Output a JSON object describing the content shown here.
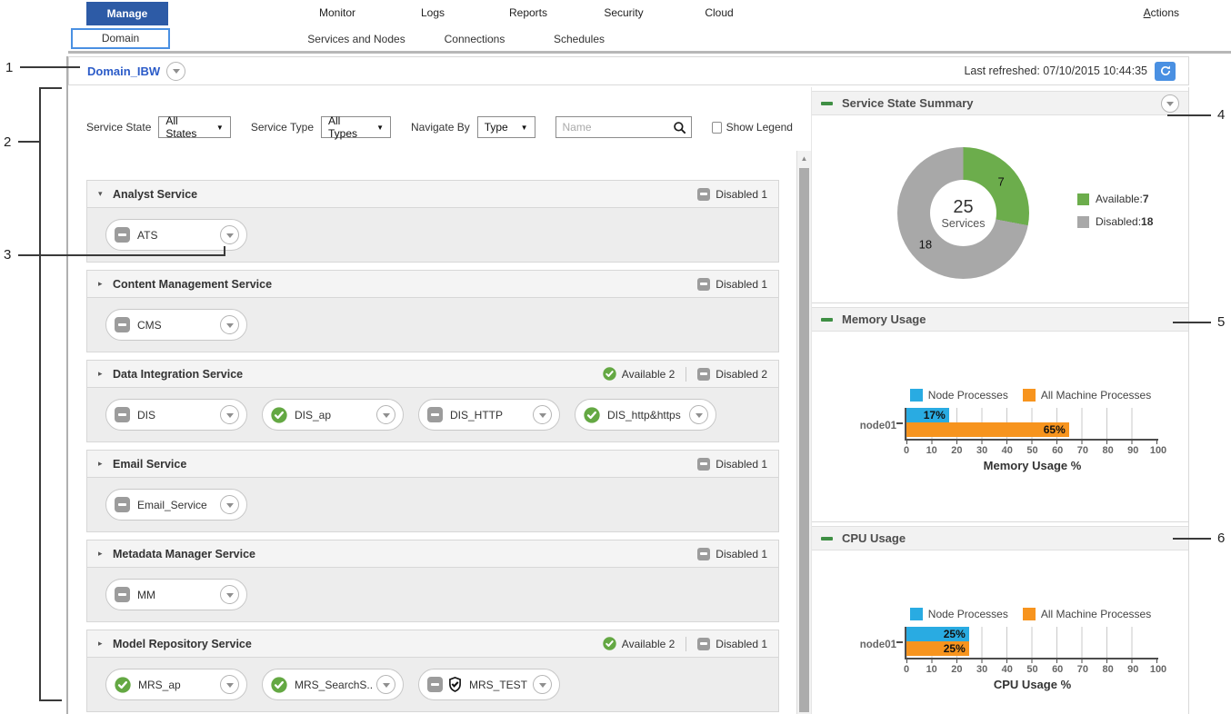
{
  "nav": {
    "tabs": [
      {
        "label": "Manage",
        "active": true
      },
      {
        "label": "Monitor",
        "active": false
      },
      {
        "label": "Logs",
        "active": false
      },
      {
        "label": "Reports",
        "active": false
      },
      {
        "label": "Security",
        "active": false
      },
      {
        "label": "Cloud",
        "active": false
      }
    ],
    "subtabs": [
      {
        "label": "Domain",
        "active": true
      },
      {
        "label": "Services and Nodes",
        "active": false
      },
      {
        "label": "Connections",
        "active": false
      },
      {
        "label": "Schedules",
        "active": false
      }
    ],
    "actions_label": "Actions"
  },
  "domain_header": {
    "domain_name": "Domain_IBW",
    "last_refreshed": "Last refreshed: 07/10/2015 10:44:35"
  },
  "filters": {
    "service_state_label": "Service State",
    "service_state_value": "All States",
    "service_type_label": "Service Type",
    "service_type_value": "All Types",
    "navigate_by_label": "Navigate By",
    "navigate_by_value": "Type",
    "name_placeholder": "Name",
    "show_legend_label": "Show Legend",
    "show_legend_checked": false
  },
  "services": {
    "groups": [
      {
        "name": "Analyst Service",
        "expanded": true,
        "badges": [
          {
            "state": "disabled",
            "label": "Disabled 1"
          }
        ],
        "items": [
          {
            "label": "ATS",
            "state": "disabled"
          }
        ]
      },
      {
        "name": "Content Management Service",
        "expanded": false,
        "badges": [
          {
            "state": "disabled",
            "label": "Disabled 1"
          }
        ],
        "items": [
          {
            "label": "CMS",
            "state": "disabled"
          }
        ]
      },
      {
        "name": "Data Integration Service",
        "expanded": false,
        "badges": [
          {
            "state": "available",
            "label": "Available 2"
          },
          {
            "state": "disabled",
            "label": "Disabled 2"
          }
        ],
        "items": [
          {
            "label": "DIS",
            "state": "disabled"
          },
          {
            "label": "DIS_ap",
            "state": "available"
          },
          {
            "label": "DIS_HTTP",
            "state": "disabled"
          },
          {
            "label": "DIS_http&https",
            "state": "available"
          }
        ]
      },
      {
        "name": "Email Service",
        "expanded": false,
        "badges": [
          {
            "state": "disabled",
            "label": "Disabled 1"
          }
        ],
        "items": [
          {
            "label": "Email_Service",
            "state": "disabled"
          }
        ]
      },
      {
        "name": "Metadata Manager Service",
        "expanded": false,
        "badges": [
          {
            "state": "disabled",
            "label": "Disabled 1"
          }
        ],
        "items": [
          {
            "label": "MM",
            "state": "disabled"
          }
        ]
      },
      {
        "name": "Model Repository Service",
        "expanded": false,
        "badges": [
          {
            "state": "available",
            "label": "Available 2"
          },
          {
            "state": "disabled",
            "label": "Disabled 1"
          }
        ],
        "items": [
          {
            "label": "MRS_ap",
            "state": "available"
          },
          {
            "label": "MRS_SearchS...",
            "state": "available"
          },
          {
            "label": "MRS_TEST",
            "state": "disabled",
            "shield": true
          }
        ]
      }
    ]
  },
  "chart_data": [
    {
      "id": "service_state_summary",
      "type": "pie",
      "donut": true,
      "title": "Service State Summary",
      "center_value": "25",
      "center_label": "Services",
      "slices": [
        {
          "label": "Available",
          "value": 7,
          "color": "#6cad4c"
        },
        {
          "label": "Disabled",
          "value": 18,
          "color": "#a8a8a8"
        }
      ],
      "legend_position": "right"
    },
    {
      "id": "memory_usage",
      "type": "bar",
      "orientation": "horizontal",
      "title": "Memory Usage",
      "categories": [
        "node01"
      ],
      "series": [
        {
          "name": "Node Processes",
          "color": "#29abe2",
          "values": [
            17
          ]
        },
        {
          "name": "All Machine Processes",
          "color": "#f7941e",
          "values": [
            65
          ]
        }
      ],
      "value_labels": [
        "17%",
        "65%"
      ],
      "xlabel": "Memory Usage %",
      "xlim": [
        0,
        100
      ],
      "xticks": [
        0,
        10,
        20,
        30,
        40,
        50,
        60,
        70,
        80,
        90,
        100
      ],
      "grid": true,
      "legend_position": "top"
    },
    {
      "id": "cpu_usage",
      "type": "bar",
      "orientation": "horizontal",
      "title": "CPU Usage",
      "categories": [
        "node01"
      ],
      "series": [
        {
          "name": "Node Processes",
          "color": "#29abe2",
          "values": [
            25
          ]
        },
        {
          "name": "All Machine Processes",
          "color": "#f7941e",
          "values": [
            25
          ]
        }
      ],
      "value_labels": [
        "25%",
        "25%"
      ],
      "xlabel": "CPU Usage %",
      "xlim": [
        0,
        100
      ],
      "xticks": [
        0,
        10,
        20,
        30,
        40,
        50,
        60,
        70,
        80,
        90,
        100
      ],
      "grid": true,
      "legend_position": "top"
    }
  ],
  "callouts": [
    {
      "n": "1"
    },
    {
      "n": "2"
    },
    {
      "n": "3"
    },
    {
      "n": "4"
    },
    {
      "n": "5"
    },
    {
      "n": "6"
    }
  ],
  "colors": {
    "accent_blue": "#2d5ba6",
    "link_blue": "#2b5bc8",
    "subtab_border_blue": "#4a90e2",
    "refresh_blue": "#4a90e2",
    "available_green": "#64a843",
    "section_minus_green": "#3f8f44",
    "disabled_gray": "#9c9c9c",
    "donut_green": "#6cad4c",
    "donut_gray": "#a8a8a8",
    "bar_cyan": "#29abe2",
    "bar_orange": "#f7941e"
  }
}
